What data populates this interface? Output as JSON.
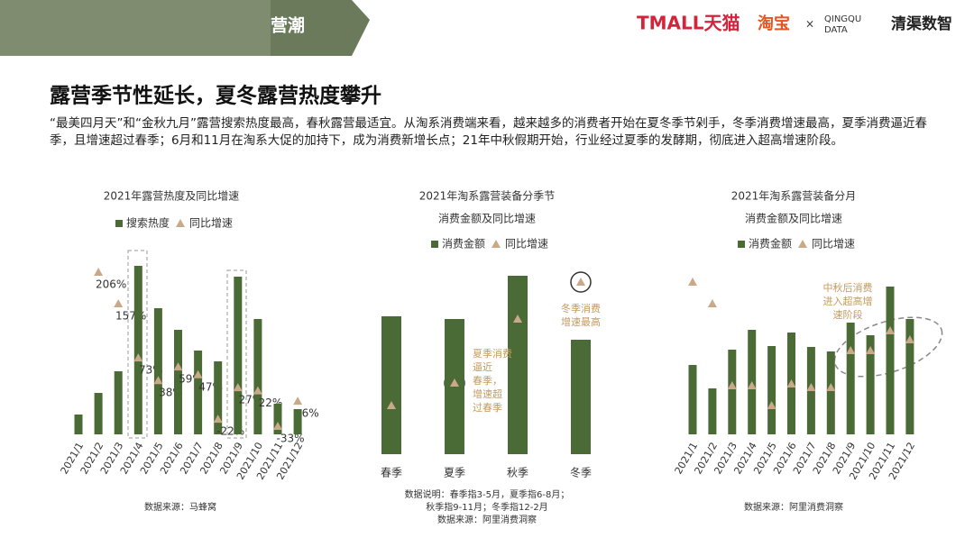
{
  "header": {
    "banner": "营潮",
    "logos": [
      "TMALL天猫",
      "淘宝",
      "×",
      "QINGQU",
      "DATA",
      "清渠数智"
    ]
  },
  "title": "露营季节性延长，夏冬露营热度攀升",
  "description": "“最美四月天”和“金秋九月”露营搜索热度最高，春秋露营最适宜。从淘系消费端来看，越来越多的消费者开始在夏冬季节剁手，冬季消费增速最高，夏季消费逼近春季，且增速超过春季；6月和11月在淘系大促的加持下，成为消费新增长点；21年中秋假期开始，行业经过夏季的发酵期，彻底进入超高增速阶段。",
  "chart_data": [
    {
      "type": "bar",
      "title": "2021年露营热度及同比增速",
      "categories": [
        "2021/1",
        "2021/2",
        "2021/3",
        "2021/4",
        "2021/5",
        "2021/6",
        "2021/7",
        "2021/8",
        "2021/9",
        "2021/10",
        "2021/11",
        "2021/12"
      ],
      "series": [
        {
          "name": "搜索热度",
          "color": "#4a6b36",
          "values": [
            22,
            46,
            70,
            187,
            140,
            116,
            93,
            81,
            175,
            128,
            34,
            28
          ]
        },
        {
          "name": "同比增速",
          "color": "#c9a98a",
          "marker": "triangle",
          "values": [
            null,
            206,
            157,
            73,
            38,
            59,
            47,
            -22,
            27,
            22,
            -33,
            6
          ],
          "value_labels": [
            null,
            "206%",
            "157%",
            "73%",
            "38%",
            "59%",
            "47%",
            "-22%",
            "27%",
            "22%",
            "-33%",
            "6%"
          ]
        }
      ],
      "notes": [
        "数据来源：马蜂窝"
      ]
    },
    {
      "type": "bar",
      "title": "2021年淘系露营装备分季节",
      "subtitle": "消费金额及同比增速",
      "categories": [
        "春季",
        "夏季",
        "秋季",
        "冬季"
      ],
      "series": [
        {
          "name": "消费金额",
          "color": "#4a6b36",
          "values": [
            153,
            150,
            198,
            127
          ]
        },
        {
          "name": "同比增速",
          "color": "#c9a98a",
          "marker": "triangle",
          "values": [
            54,
            79,
            150,
            191
          ]
        }
      ],
      "annotations": [
        [
          "夏季消费",
          "逼近",
          "春季，",
          "增速超",
          "过春季"
        ],
        [
          "冬季消费",
          "增速最高"
        ]
      ],
      "notes": [
        "数据说明：春季指3-5月，夏季指6-8月；",
        "秋季指9-11月；冬季指12-2月",
        "数据来源：阿里消费洞察"
      ]
    },
    {
      "type": "bar",
      "title": "2021年淘系露营装备分月",
      "subtitle": "消费金额及同比增速",
      "categories": [
        "2021/1",
        "2021/2",
        "2021/3",
        "2021/4",
        "2021/5",
        "2021/6",
        "2021/7",
        "2021/8",
        "2021/9",
        "2021/10",
        "2021/11",
        "2021/12"
      ],
      "series": [
        {
          "name": "消费金额",
          "color": "#4a6b36",
          "values": [
            77,
            51,
            94,
            116,
            98,
            113,
            97,
            92,
            124,
            110,
            164,
            128
          ]
        },
        {
          "name": "同比增速",
          "color": "#c9a98a",
          "marker": "triangle",
          "values": [
            169,
            145,
            54,
            54,
            32,
            56,
            52,
            52,
            93,
            93,
            115,
            105
          ]
        }
      ],
      "annotations": [
        [
          "中秋后消费",
          "进入超高增",
          "速阶段"
        ]
      ],
      "notes": [
        "数据来源：阿里消费洞察"
      ]
    }
  ]
}
